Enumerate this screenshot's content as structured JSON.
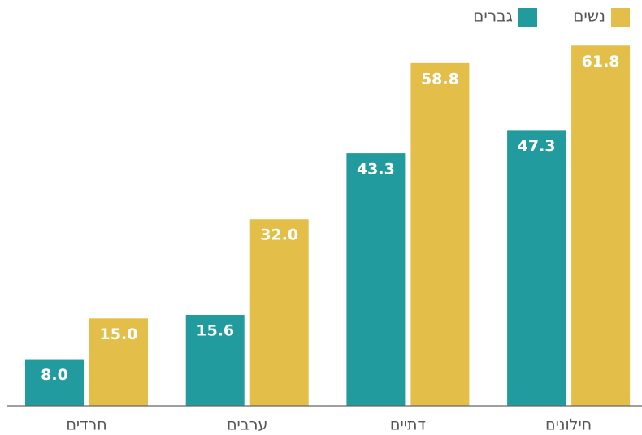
{
  "chart_data": {
    "type": "bar",
    "categories": [
      "חרדים",
      "ערבים",
      "דתיים",
      "חילונים"
    ],
    "series": [
      {
        "name": "גברים",
        "color": "#219b9d",
        "values": [
          8.0,
          15.6,
          43.3,
          47.3
        ],
        "value_labels": [
          "8.0",
          "15.6",
          "43.3",
          "47.3"
        ]
      },
      {
        "name": "נשים",
        "color": "#e3bf4a",
        "values": [
          15.0,
          32.0,
          58.8,
          61.8
        ],
        "value_labels": [
          "15.0",
          "32.0",
          "58.8",
          "61.8"
        ]
      }
    ]
  }
}
